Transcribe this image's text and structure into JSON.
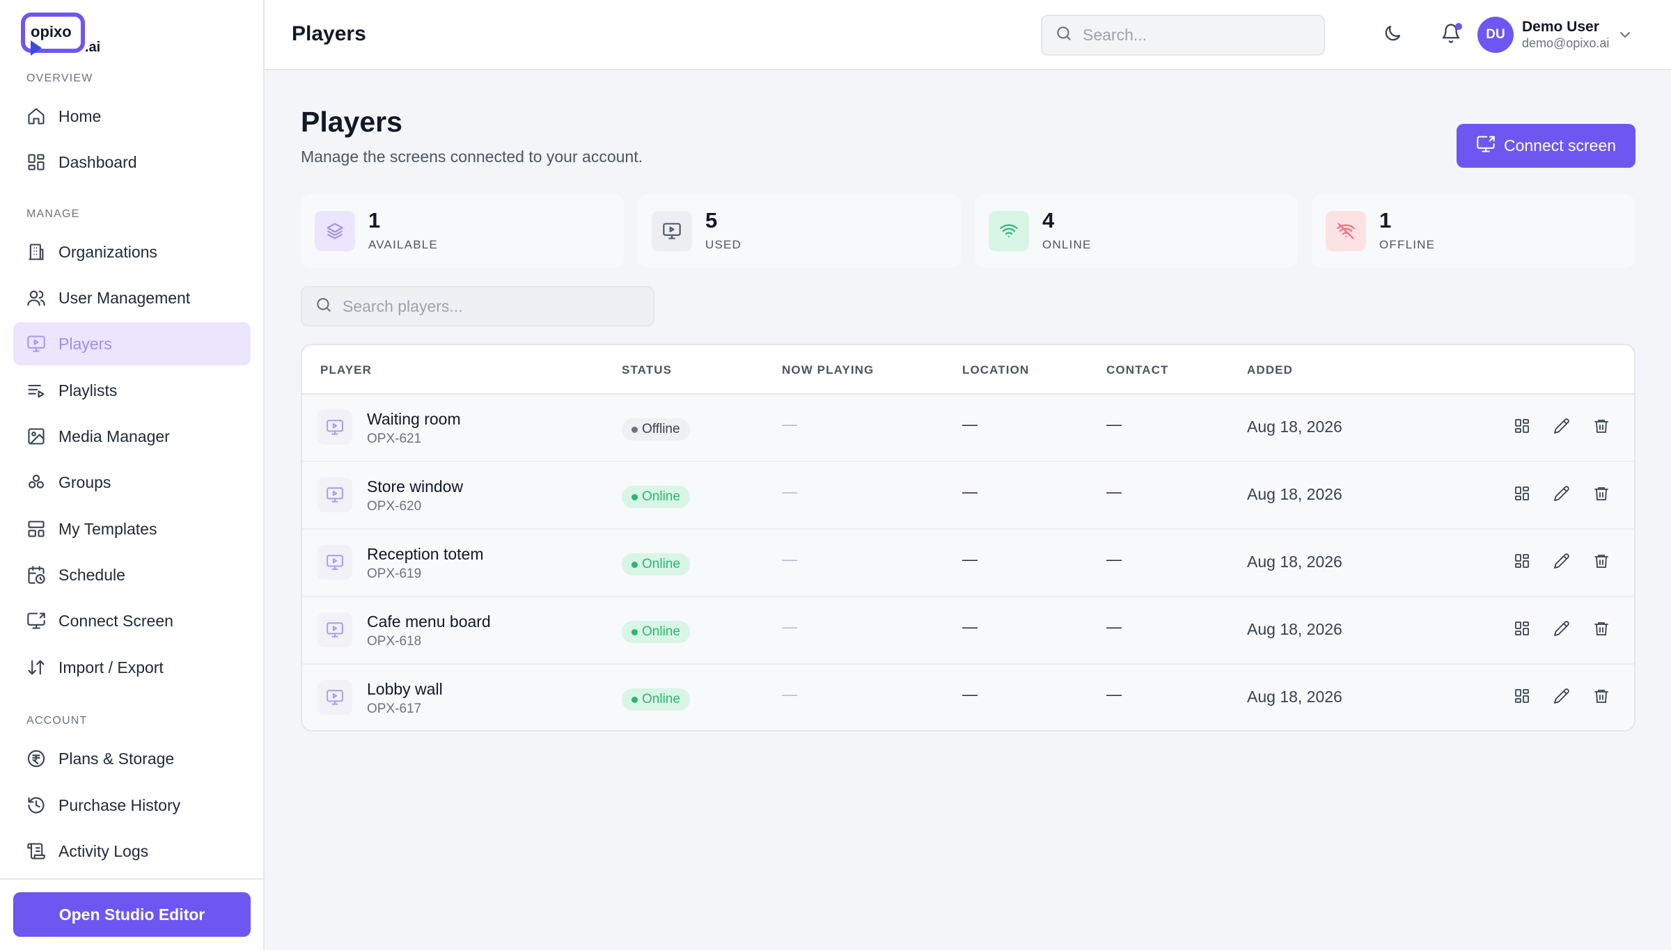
{
  "brand": {
    "logo_text": "opixo",
    "logo_suffix": ".ai",
    "accent": "#6e56f0"
  },
  "sidebar": {
    "sections": [
      {
        "title": "OVERVIEW"
      },
      {
        "title": "MANAGE"
      },
      {
        "title": "ACCOUNT"
      }
    ],
    "items": [
      {
        "label": "Home",
        "icon": "home-icon"
      },
      {
        "label": "Dashboard",
        "icon": "dashboard-icon"
      },
      {
        "label": "Organizations",
        "icon": "building-icon"
      },
      {
        "label": "User Management",
        "icon": "users-icon"
      },
      {
        "label": "Players",
        "icon": "monitor-play-icon",
        "active": true
      },
      {
        "label": "Playlists",
        "icon": "playlist-icon"
      },
      {
        "label": "Media Manager",
        "icon": "image-icon"
      },
      {
        "label": "Groups",
        "icon": "groups-icon"
      },
      {
        "label": "My Templates",
        "icon": "template-icon"
      },
      {
        "label": "Schedule",
        "icon": "calendar-clock-icon"
      },
      {
        "label": "Connect Screen",
        "icon": "screen-connect-icon"
      },
      {
        "label": "Import / Export",
        "icon": "arrows-updown-icon"
      },
      {
        "label": "Plans & Storage",
        "icon": "currency-icon"
      },
      {
        "label": "Purchase History",
        "icon": "history-icon"
      },
      {
        "label": "Activity Logs",
        "icon": "scroll-icon"
      }
    ],
    "studio_button": "Open Studio Editor"
  },
  "topbar": {
    "title": "Players",
    "search_placeholder": "Search...",
    "user": {
      "initials": "DU",
      "name": "Demo User",
      "email": "demo@opixo.ai"
    }
  },
  "page": {
    "title": "Players",
    "subtitle": "Manage the screens connected to your account.",
    "connect_button": "Connect screen"
  },
  "stats": [
    {
      "value": "1",
      "label": "AVAILABLE",
      "icon": "layers-icon",
      "bg": "#ebe6fd",
      "fg": "#9d8ff0"
    },
    {
      "value": "5",
      "label": "USED",
      "icon": "monitor-play-icon",
      "bg": "#eceef2",
      "fg": "#4b5563"
    },
    {
      "value": "4",
      "label": "ONLINE",
      "icon": "wifi-icon",
      "bg": "#d8f5e6",
      "fg": "#2bb673"
    },
    {
      "value": "1",
      "label": "OFFLINE",
      "icon": "wifi-off-icon",
      "bg": "#fde2e4",
      "fg": "#ef6b7b"
    }
  ],
  "players_search_placeholder": "Search players...",
  "table": {
    "headers": [
      "PLAYER",
      "STATUS",
      "NOW PLAYING",
      "LOCATION",
      "CONTACT",
      "ADDED"
    ],
    "rows": [
      {
        "name": "Waiting room",
        "id": "OPX-621",
        "status": "Offline",
        "now_playing": "—",
        "location": "—",
        "contact": "—",
        "added": "Aug 18, 2026"
      },
      {
        "name": "Store window",
        "id": "OPX-620",
        "status": "Online",
        "now_playing": "—",
        "location": "—",
        "contact": "—",
        "added": "Aug 18, 2026"
      },
      {
        "name": "Reception totem",
        "id": "OPX-619",
        "status": "Online",
        "now_playing": "—",
        "location": "—",
        "contact": "—",
        "added": "Aug 18, 2026"
      },
      {
        "name": "Cafe menu board",
        "id": "OPX-618",
        "status": "Online",
        "now_playing": "—",
        "location": "—",
        "contact": "—",
        "added": "Aug 18, 2026"
      },
      {
        "name": "Lobby wall",
        "id": "OPX-617",
        "status": "Online",
        "now_playing": "—",
        "location": "—",
        "contact": "—",
        "added": "Aug 18, 2026"
      }
    ]
  }
}
